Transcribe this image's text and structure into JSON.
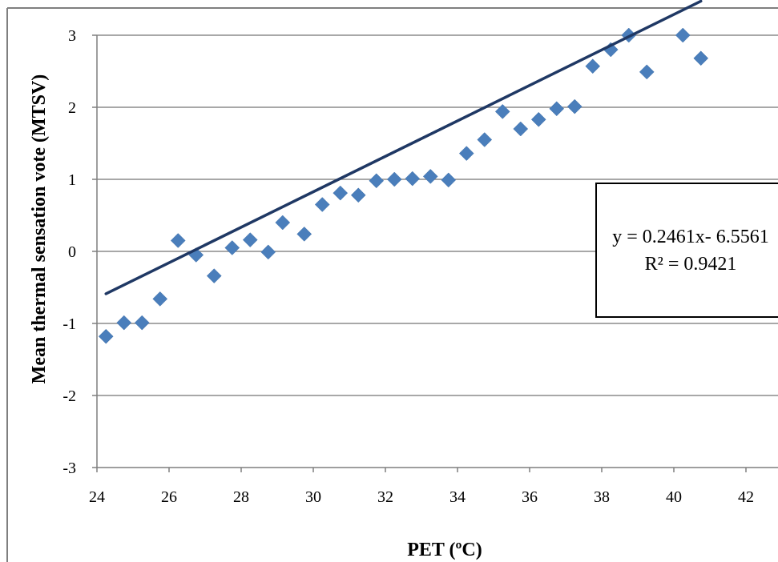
{
  "chart_data": {
    "type": "scatter",
    "title": "",
    "xlabel": "PET (ºC)",
    "ylabel": "Mean thermal sensation vote (MTSV)",
    "xlim": [
      24,
      42
    ],
    "ylim": [
      -3,
      3
    ],
    "xticks": [
      "24",
      "26",
      "28",
      "30",
      "32",
      "34",
      "36",
      "38",
      "40",
      "42"
    ],
    "yticks": [
      "-3",
      "-2",
      "-1",
      "0",
      "1",
      "2",
      "3"
    ],
    "grid": "horizontal",
    "point_color": "#4a7ebb",
    "trendline_color": "#1f3864",
    "points": {
      "x": [
        24.25,
        24.75,
        25.25,
        25.75,
        26.25,
        26.75,
        27.25,
        27.75,
        28.25,
        28.75,
        29.15,
        29.75,
        30.25,
        30.75,
        31.25,
        31.75,
        32.25,
        32.75,
        33.25,
        33.75,
        34.25,
        34.75,
        35.25,
        35.75,
        36.25,
        36.75,
        37.25,
        37.75,
        38.25,
        38.75,
        39.25,
        40.25,
        40.75
      ],
      "y": [
        -1.18,
        -0.99,
        -0.99,
        -0.66,
        0.15,
        -0.05,
        -0.34,
        0.05,
        0.16,
        -0.01,
        0.4,
        0.24,
        0.65,
        0.81,
        0.78,
        0.98,
        1.0,
        1.01,
        1.04,
        0.99,
        1.36,
        1.55,
        1.94,
        1.7,
        1.83,
        1.98,
        2.01,
        2.57,
        2.8,
        3.0,
        2.49,
        3.0,
        2.68
      ]
    },
    "trendline": {
      "slope": 0.2461,
      "intercept": -6.5561,
      "x_range": [
        24.25,
        40.75
      ]
    },
    "annotation": {
      "equation": "y = 0.2461x- 6.5561",
      "r_squared": "R² = 0.9421"
    }
  }
}
